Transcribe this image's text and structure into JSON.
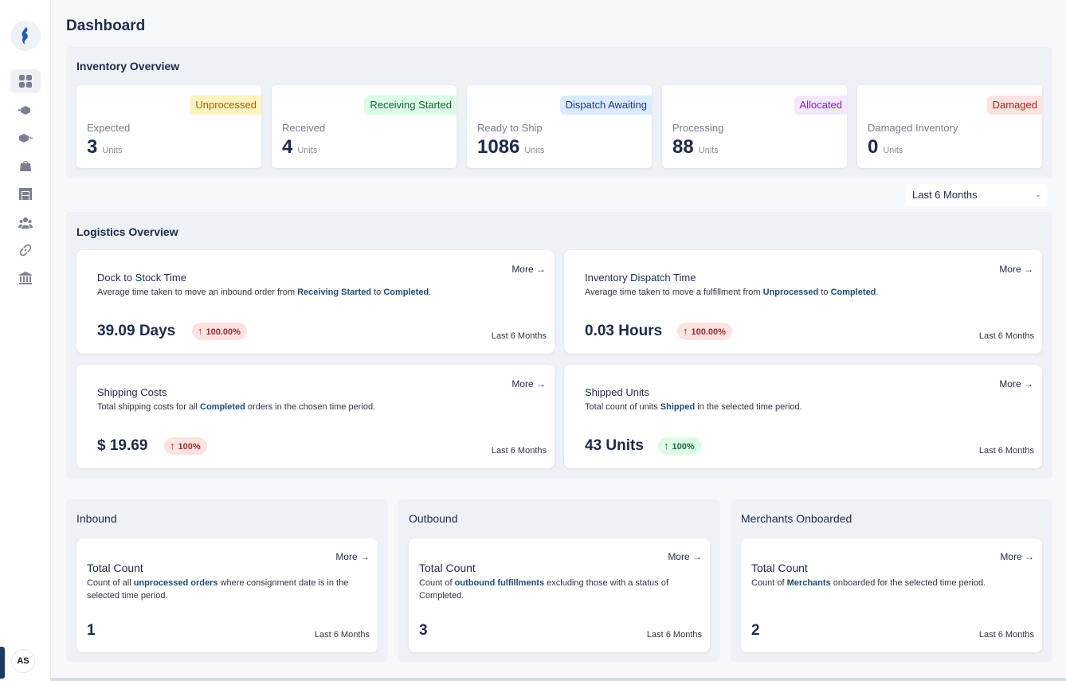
{
  "page": {
    "title": "Dashboard",
    "avatar_initials": "AS"
  },
  "sidebar": {
    "items": [
      {
        "icon": "dashboard-icon",
        "active": true
      },
      {
        "icon": "inbound-box-icon"
      },
      {
        "icon": "outbound-box-icon"
      },
      {
        "icon": "bag-icon"
      },
      {
        "icon": "warehouse-icon"
      },
      {
        "icon": "users-icon"
      },
      {
        "icon": "link-icon"
      },
      {
        "icon": "bank-icon"
      }
    ]
  },
  "inventory": {
    "title": "Inventory Overview",
    "cards": [
      {
        "badge": "Unprocessed",
        "label": "Expected",
        "value": "3",
        "units": "Units",
        "badge_bg": "#fef3c0",
        "badge_fg": "#a16207"
      },
      {
        "badge": "Receiving Started",
        "label": "Received",
        "value": "4",
        "units": "Units",
        "badge_bg": "#dcfce7",
        "badge_fg": "#166534"
      },
      {
        "badge": "Dispatch Awaiting",
        "label": "Ready to Ship",
        "value": "1086",
        "units": "Units",
        "badge_bg": "#dbeafe",
        "badge_fg": "#1e3a8a"
      },
      {
        "badge": "Allocated",
        "label": "Processing",
        "value": "88",
        "units": "Units",
        "badge_bg": "#f3e8ff",
        "badge_fg": "#7e22ce"
      },
      {
        "badge": "Damaged",
        "label": "Damaged Inventory",
        "value": "0",
        "units": "Units",
        "badge_bg": "#fde2e2",
        "badge_fg": "#b91c1c"
      }
    ]
  },
  "filter": {
    "selected": "Last 6 Months"
  },
  "logistics": {
    "title": "Logistics Overview",
    "cards": [
      {
        "title": "Dock to Stock Time",
        "desc_pre": "Average time taken to move an inbound order from ",
        "desc_b1": "Receiving Started",
        "desc_mid": " to ",
        "desc_b2": "Completed",
        "desc_post": ".",
        "value": "39.09 Days",
        "change": "100.00%",
        "trend": "up-red",
        "period": "Last 6 Months",
        "more": "More"
      },
      {
        "title": "Inventory Dispatch Time",
        "desc_pre": "Average time taken to move a fulfillment from ",
        "desc_b1": "Unprocessed",
        "desc_mid": " to ",
        "desc_b2": "Completed",
        "desc_post": ".",
        "value": "0.03 Hours",
        "change": "100.00%",
        "trend": "up-red",
        "period": "Last 6 Months",
        "more": "More"
      },
      {
        "title": "Shipping Costs",
        "desc_pre": "Total shipping costs for all ",
        "desc_b1": "Completed",
        "desc_mid": " orders in the chosen time period.",
        "desc_b2": "",
        "desc_post": "",
        "value": "$ 19.69",
        "change": "100%",
        "trend": "up-red",
        "period": "Last 6 Months",
        "more": "More"
      },
      {
        "title": "Shipped Units",
        "desc_pre": "Total count of units ",
        "desc_b1": "Shipped",
        "desc_mid": " in the selected time period.",
        "desc_b2": "",
        "desc_post": "",
        "value": "43 Units",
        "change": "100%",
        "trend": "up-green",
        "period": "Last 6 Months",
        "more": "More"
      }
    ]
  },
  "summary": [
    {
      "section": "Inbound",
      "title": "Total Count",
      "desc_pre": "Count of all ",
      "desc_b": "unprocessed orders",
      "desc_post": " where consignment date is in the selected time period.",
      "value": "1",
      "period": "Last 6 Months",
      "more": "More"
    },
    {
      "section": "Outbound",
      "title": "Total Count",
      "desc_pre": "Count of ",
      "desc_b": "outbound fulfillments",
      "desc_post": " excluding those with a status of Completed.",
      "value": "3",
      "period": "Last 6 Months",
      "more": "More"
    },
    {
      "section": "Merchants Onboarded",
      "title": "Total Count",
      "desc_pre": "Count of ",
      "desc_b": "Merchants",
      "desc_post": " onboarded for the selected time period.",
      "value": "2",
      "period": "Last 6 Months",
      "more": "More"
    }
  ]
}
